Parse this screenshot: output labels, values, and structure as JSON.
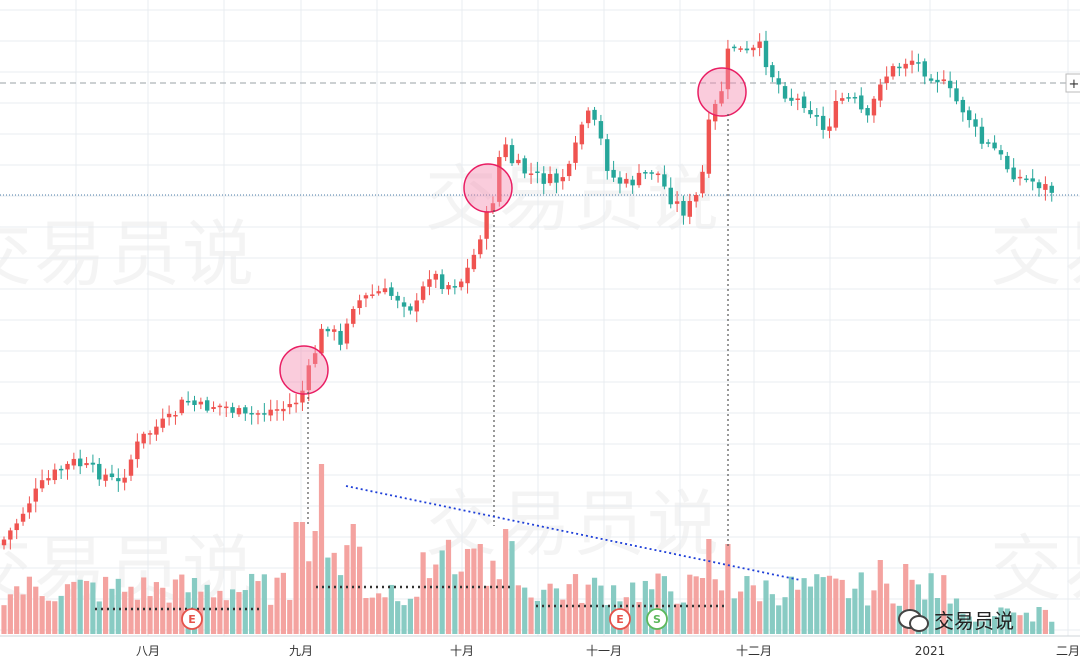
{
  "watermark_text": "交易员说",
  "brand": {
    "name": "交易员说",
    "icon": "wechat-icon"
  },
  "colors": {
    "up": "#ef5350",
    "down": "#26a69a",
    "up_vol": "#f4a3a0",
    "down_vol": "#88cbc3",
    "highlight": "#e91e63",
    "trend": "#1e3fd8",
    "grid": "#e8ecf1",
    "ref_line": "#9aa0a6",
    "price_line": "#4d7ea8"
  },
  "chart_data": {
    "type": "candlestick",
    "title": "",
    "xlabel": "",
    "ylabel": "",
    "x_ticks": [
      "八月",
      "九月",
      "十月",
      "十一月",
      "十二月",
      "2021",
      "二月"
    ],
    "grid": true,
    "events": [
      {
        "label": "E",
        "near": "八月"
      },
      {
        "label": "E",
        "near": "十一月"
      },
      {
        "label": "S",
        "near": "十一月"
      }
    ],
    "annotations": {
      "breakout_circles": 3,
      "volume_trendline": "descending",
      "volume_baselines": 3
    },
    "extra_labels": [
      "+"
    ]
  }
}
